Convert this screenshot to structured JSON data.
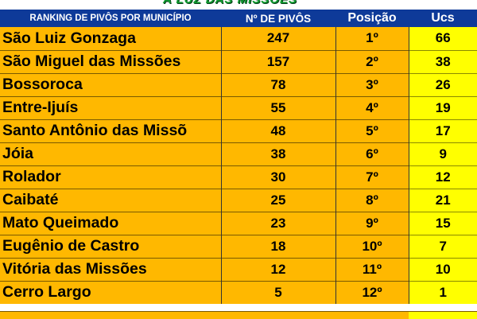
{
  "banner": "A LUZ DAS MISSÕES",
  "header": {
    "municipio": "RANKING DE PIVÔS POR MUNICÍPIO",
    "pivos": "Nº DE PIVÔS",
    "posicao": "Posição",
    "ucs": "Ucs"
  },
  "rows": [
    {
      "municipio": "São Luiz Gonzaga",
      "pivos": "247",
      "posicao": "1º",
      "ucs": "66"
    },
    {
      "municipio": "São Miguel das Missões",
      "pivos": "157",
      "posicao": "2º",
      "ucs": "38"
    },
    {
      "municipio": "Bossoroca",
      "pivos": "78",
      "posicao": "3º",
      "ucs": "26"
    },
    {
      "municipio": "Entre-Ijuís",
      "pivos": "55",
      "posicao": "4º",
      "ucs": "19"
    },
    {
      "municipio": "Santo Antônio das Missõ",
      "pivos": "48",
      "posicao": "5º",
      "ucs": "17"
    },
    {
      "municipio": "Jóia",
      "pivos": "38",
      "posicao": "6º",
      "ucs": "9"
    },
    {
      "municipio": "Rolador",
      "pivos": "30",
      "posicao": "7º",
      "ucs": "12"
    },
    {
      "municipio": "Caibaté",
      "pivos": "25",
      "posicao": "8º",
      "ucs": "21"
    },
    {
      "municipio": "Mato Queimado",
      "pivos": "23",
      "posicao": "9º",
      "ucs": "15"
    },
    {
      "municipio": "Eugênio de Castro",
      "pivos": "18",
      "posicao": "10º",
      "ucs": "7"
    },
    {
      "municipio": "Vitória das Missões",
      "pivos": "12",
      "posicao": "11º",
      "ucs": "10"
    },
    {
      "municipio": "Cerro Largo",
      "pivos": "5",
      "posicao": "12º",
      "ucs": "1"
    }
  ],
  "colors": {
    "header_bg": "#0E3A99",
    "cell_bg": "#FFB800",
    "ucs_bg": "#FFFF00",
    "banner_text": "#0E9A2E"
  }
}
